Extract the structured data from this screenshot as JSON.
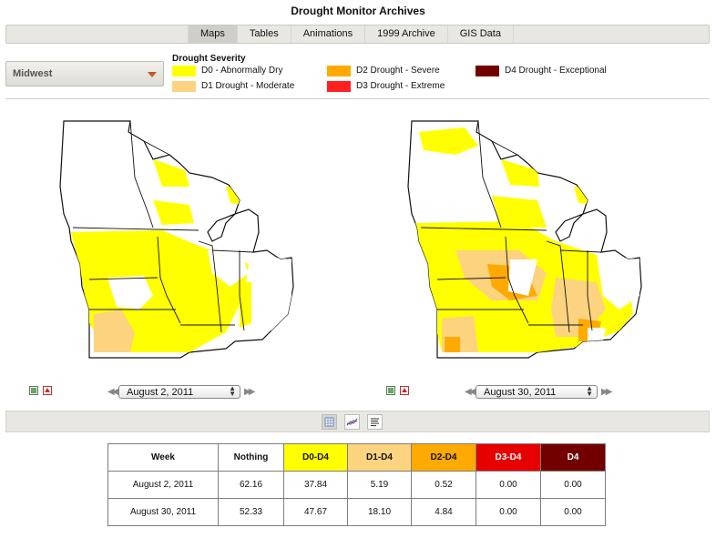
{
  "page": {
    "title": "Drought Monitor Archives"
  },
  "nav": {
    "tabs": [
      "Maps",
      "Tables",
      "Animations",
      "1999 Archive",
      "GIS Data"
    ],
    "active": "Maps"
  },
  "region_select": {
    "value": "Midwest",
    "arrow_icon": "chevron-down-icon"
  },
  "legend": {
    "title": "Drought Severity",
    "items": [
      {
        "label": "D0 - Abnormally Dry",
        "color": "#ffff00"
      },
      {
        "label": "D1 Drought - Moderate",
        "color": "#fcd37f"
      },
      {
        "label": "D2 Drought - Severe",
        "color": "#ffaa00"
      },
      {
        "label": "D3 Drought - Extreme",
        "color": "#e60000"
      },
      {
        "label": "D4 Drought - Exceptional",
        "color": "#730000"
      }
    ]
  },
  "maps": [
    {
      "date": "August 2, 2011",
      "icons": [
        "image-icon",
        "pdf-icon"
      ]
    },
    {
      "date": "August 30, 2011",
      "icons": [
        "image-icon",
        "pdf-icon"
      ]
    }
  ],
  "nav_icons": {
    "prev": "double-chevron-left-icon",
    "next": "double-chevron-right-icon"
  },
  "view_buttons": [
    "table-view-icon",
    "chart-view-icon",
    "text-view-icon"
  ],
  "table": {
    "headers": [
      "Week",
      "Nothing",
      "D0-D4",
      "D1-D4",
      "D2-D4",
      "D3-D4",
      "D4"
    ],
    "header_colors": [
      "#ffffff",
      "#ffffff",
      "#ffff00",
      "#fcd37f",
      "#ffaa00",
      "#e60000",
      "#730000"
    ],
    "rows": [
      [
        "August 2, 2011",
        "62.16",
        "37.84",
        "5.19",
        "0.52",
        "0.00",
        "0.00"
      ],
      [
        "August 30, 2011",
        "52.33",
        "47.67",
        "18.10",
        "4.84",
        "0.00",
        "0.00"
      ]
    ]
  }
}
